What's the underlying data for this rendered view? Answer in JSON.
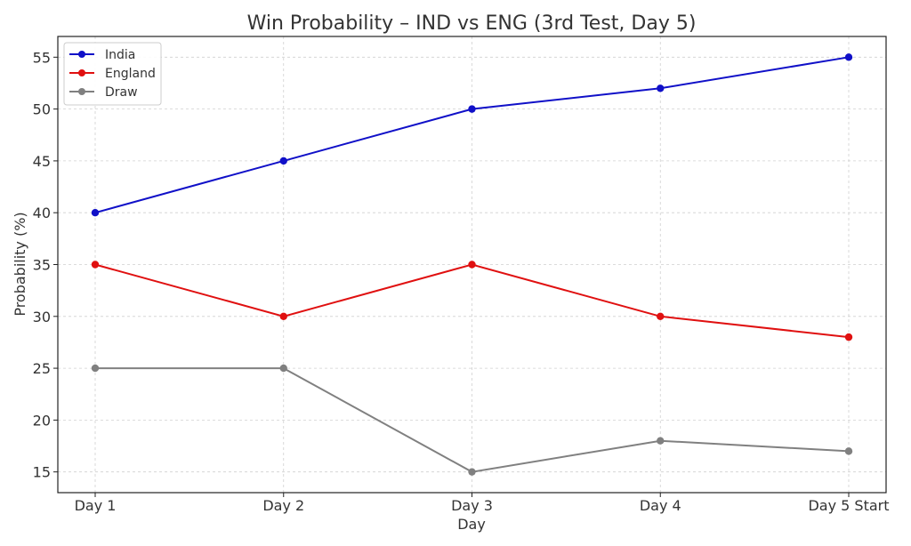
{
  "chart_data": {
    "type": "line",
    "title": "Win Probability – IND vs ENG (3rd Test, Day 5)",
    "xlabel": "Day",
    "ylabel": "Probability (%)",
    "categories": [
      "Day 1",
      "Day 2",
      "Day 3",
      "Day 4",
      "Day 5 Start"
    ],
    "ylim": [
      13,
      57
    ],
    "yticks": [
      15,
      20,
      25,
      30,
      35,
      40,
      45,
      50,
      55
    ],
    "grid": true,
    "legend_position": "top-left",
    "series": [
      {
        "name": "India",
        "color": "#1010c8",
        "values": [
          40,
          45,
          50,
          52,
          55
        ]
      },
      {
        "name": "England",
        "color": "#e01010",
        "values": [
          35,
          30,
          35,
          30,
          28
        ]
      },
      {
        "name": "Draw",
        "color": "#808080",
        "values": [
          25,
          25,
          15,
          18,
          17
        ]
      }
    ]
  }
}
